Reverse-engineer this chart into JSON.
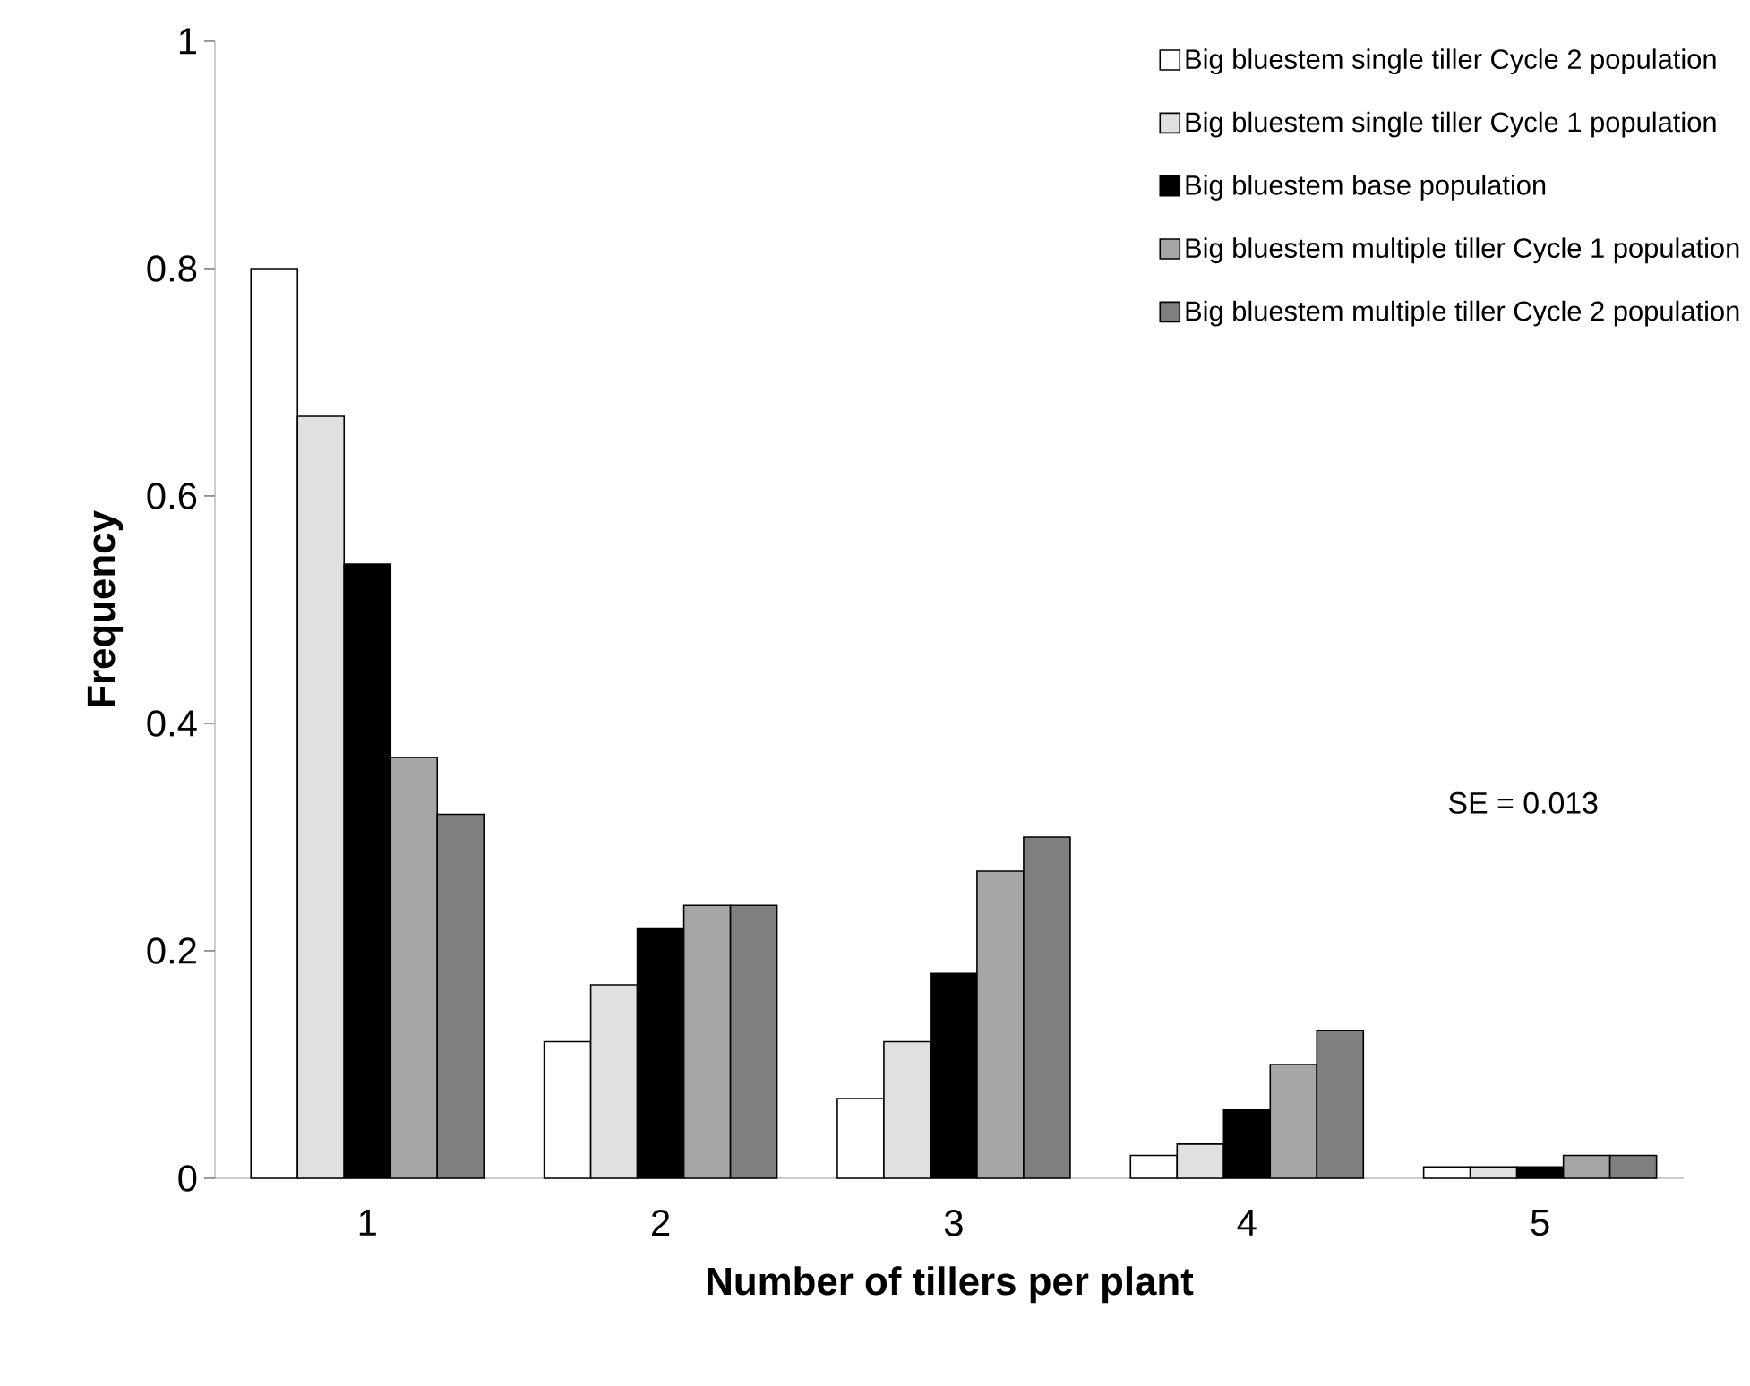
{
  "chart_data": {
    "type": "bar",
    "xlabel": "Number of tillers per plant",
    "ylabel": "Frequency",
    "categories": [
      "1",
      "2",
      "3",
      "4",
      "5"
    ],
    "series": [
      {
        "name": "Big bluestem single tiller Cycle 2 population",
        "color": "#ffffff",
        "values": [
          0.8,
          0.12,
          0.07,
          0.02,
          0.01
        ]
      },
      {
        "name": "Big bluestem single tiller Cycle 1 population",
        "color": "#e0e0e0",
        "values": [
          0.67,
          0.17,
          0.12,
          0.03,
          0.01
        ]
      },
      {
        "name": "Big bluestem base population",
        "color": "#000000",
        "values": [
          0.54,
          0.22,
          0.18,
          0.06,
          0.01
        ]
      },
      {
        "name": "Big bluestem multiple tiller Cycle 1 population",
        "color": "#a6a6a6",
        "values": [
          0.37,
          0.24,
          0.27,
          0.1,
          0.02
        ]
      },
      {
        "name": "Big bluestem multiple tiller Cycle 2 population",
        "color": "#7f7f7f",
        "values": [
          0.32,
          0.24,
          0.3,
          0.13,
          0.02
        ]
      }
    ],
    "ylim": [
      0,
      1
    ],
    "yticks": [
      0,
      0.2,
      0.4,
      0.6,
      0.8,
      1
    ],
    "legend": "top right",
    "grid": false,
    "annotations": [
      {
        "text": "SE = 0.013"
      }
    ]
  }
}
